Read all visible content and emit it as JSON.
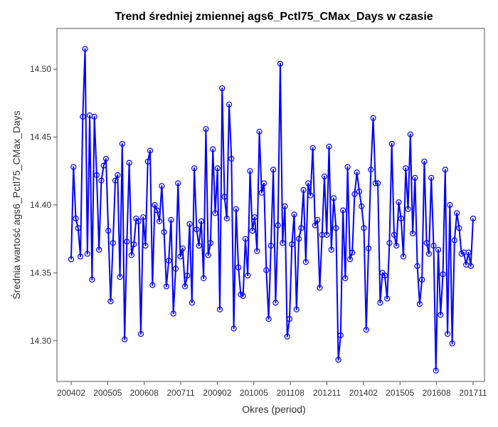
{
  "chart_data": {
    "type": "line",
    "title": "Trend średniej zmiennej ags6_Pctl75_CMax_Days w czasie",
    "xlabel": "Okres (period)",
    "ylabel": "Średnia wartość ags6_Pctl75_CMax_Days",
    "x_tick_labels": [
      "200402",
      "200505",
      "200608",
      "200711",
      "200902",
      "201005",
      "201108",
      "201211",
      "201402",
      "201505",
      "201608",
      "201711"
    ],
    "y_tick_labels": [
      "14.30",
      "14.35",
      "14.40",
      "14.45",
      "14.50"
    ],
    "y_ticks": [
      14.3,
      14.35,
      14.4,
      14.45,
      14.5
    ],
    "ylim": [
      14.27,
      14.53
    ],
    "series_color": "#0000ff",
    "grid": false,
    "values": [
      14.36,
      14.428,
      14.39,
      14.383,
      14.362,
      14.465,
      14.515,
      14.364,
      14.466,
      14.345,
      14.465,
      14.422,
      14.367,
      14.418,
      14.429,
      14.434,
      14.381,
      14.329,
      14.372,
      14.418,
      14.422,
      14.347,
      14.445,
      14.301,
      14.373,
      14.431,
      14.363,
      14.371,
      14.39,
      14.388,
      14.305,
      14.391,
      14.37,
      14.432,
      14.44,
      14.341,
      14.4,
      14.396,
      14.388,
      14.414,
      14.38,
      14.34,
      14.359,
      14.389,
      14.32,
      14.353,
      14.416,
      14.362,
      14.368,
      14.34,
      14.348,
      14.386,
      14.328,
      14.427,
      14.382,
      14.37,
      14.388,
      14.346,
      14.456,
      14.363,
      14.372,
      14.441,
      14.394,
      14.427,
      14.323,
      14.486,
      14.406,
      14.39,
      14.474,
      14.434,
      14.309,
      14.397,
      14.354,
      14.334,
      14.333,
      14.375,
      14.348,
      14.425,
      14.381,
      14.391,
      14.366,
      14.454,
      14.409,
      14.416,
      14.352,
      14.316,
      14.37,
      14.426,
      14.328,
      14.385,
      14.504,
      14.372,
      14.399,
      14.303,
      14.316,
      14.371,
      14.393,
      14.323,
      14.375,
      14.383,
      14.411,
      14.358,
      14.416,
      14.407,
      14.442,
      14.385,
      14.389,
      14.339,
      14.378,
      14.421,
      14.378,
      14.443,
      14.367,
      14.405,
      14.383,
      14.286,
      14.304,
      14.396,
      14.346,
      14.428,
      14.36,
      14.365,
      14.408,
      14.424,
      14.41,
      14.399,
      14.383,
      14.308,
      14.368,
      14.426,
      14.464,
      14.416,
      14.416,
      14.328,
      14.35,
      14.348,
      14.331,
      14.372,
      14.445,
      14.378,
      14.37,
      14.402,
      14.39,
      14.362,
      14.427,
      14.397,
      14.452,
      14.379,
      14.42,
      14.355,
      14.327,
      14.345,
      14.432,
      14.372,
      14.364,
      14.42,
      14.37,
      14.278,
      14.367,
      14.319,
      14.349,
      14.426,
      14.305,
      14.4,
      14.298,
      14.374,
      14.394,
      14.383,
      14.364,
      14.365,
      14.356,
      14.365,
      14.355,
      14.39
    ]
  }
}
